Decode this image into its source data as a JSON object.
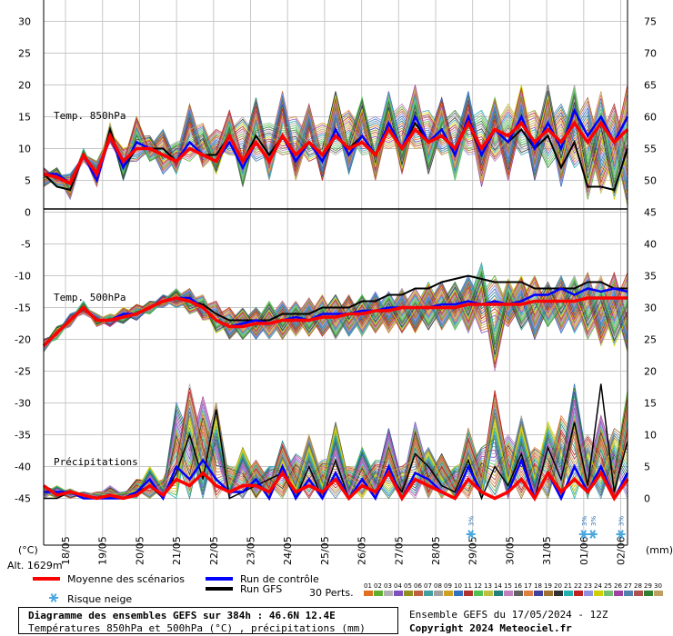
{
  "colors": {
    "mean": "#ff0000",
    "control": "#0000ff",
    "gfs": "#000000",
    "snow": "#4aa8e0",
    "grid": "#c8c8c8"
  },
  "members_colors": [
    "#e07020",
    "#60b030",
    "#b0b0b0",
    "#8050c0",
    "#909020",
    "#c06040",
    "#40a0a0",
    "#a0a0a0",
    "#d0a020",
    "#3070c0",
    "#b03030",
    "#50c050",
    "#c0c040",
    "#208080",
    "#c080c0",
    "#606060",
    "#e08040",
    "#4040a0",
    "#a07030",
    "#303030",
    "#20b0b0",
    "#c02020",
    "#9090e0",
    "#d0d000",
    "#70c070",
    "#a040a0",
    "#5080b0",
    "#b05050",
    "#308030",
    "#c0a060"
  ],
  "chart_data": {
    "type": "line",
    "x_dates": [
      "18/05",
      "19/05",
      "20/05",
      "21/05",
      "22/05",
      "23/05",
      "24/05",
      "25/05",
      "26/05",
      "27/05",
      "28/05",
      "29/05",
      "30/05",
      "31/05",
      "01/06",
      "02/06"
    ],
    "left_axis": {
      "unit_label": "(°C)",
      "ticks": [
        "30",
        "25",
        "20",
        "15",
        "10",
        "5",
        "0",
        "-5",
        "-10",
        "-15",
        "-20",
        "-25",
        "-30",
        "-35",
        "-40",
        "-45"
      ]
    },
    "right_axis": {
      "unit_label": "(mm)",
      "ticks": [
        "75",
        "70",
        "65",
        "60",
        "55",
        "50",
        "45",
        "40",
        "35",
        "30",
        "25",
        "20",
        "15",
        "10",
        "5",
        "0"
      ]
    },
    "panels": {
      "t850": {
        "label": "Temp. 850hPa",
        "mean": [
          6,
          5.5,
          4.5,
          9,
          6,
          12,
          8,
          10,
          10,
          9,
          8,
          10,
          9,
          8,
          12,
          8,
          11,
          8,
          12,
          9,
          11,
          9,
          12,
          10,
          11,
          9,
          13,
          10,
          13,
          11,
          12,
          10,
          14,
          10,
          13,
          12,
          14,
          11,
          13,
          11,
          14,
          11,
          14,
          11,
          13
        ],
        "control": [
          6,
          6,
          4.5,
          9,
          5,
          12,
          7,
          11,
          10,
          9,
          8,
          11,
          9,
          8,
          11,
          7,
          11,
          8,
          12,
          8,
          11,
          8,
          13,
          9,
          12,
          9,
          14,
          10,
          15,
          11,
          13,
          9,
          15,
          9,
          13,
          11,
          15,
          10,
          14,
          10,
          16,
          12,
          15,
          11,
          15
        ],
        "gfs": [
          6,
          4,
          3.5,
          9,
          5,
          13,
          7,
          10,
          10,
          10,
          8,
          11,
          9,
          9,
          12,
          8,
          12,
          9,
          12,
          8,
          11,
          8,
          12,
          10,
          12,
          9,
          13,
          10,
          14,
          11,
          12,
          10,
          14,
          9,
          13,
          11,
          13,
          10,
          12,
          7,
          11,
          4,
          4,
          3.5,
          10
        ],
        "spread_max": [
          7,
          7,
          6,
          10,
          8,
          14,
          10,
          15,
          12,
          13,
          11,
          17,
          14,
          13,
          16,
          15,
          18,
          14,
          19,
          15,
          17,
          14,
          19,
          16,
          18,
          15,
          19,
          17,
          20,
          16,
          18,
          16,
          19,
          16,
          18,
          17,
          20,
          16,
          20,
          17,
          20,
          18,
          19,
          17,
          20
        ],
        "spread_min": [
          4,
          4,
          2,
          8,
          4,
          11,
          5,
          8,
          8,
          6,
          6,
          8,
          7,
          6,
          9,
          4,
          8,
          5,
          9,
          5,
          8,
          5,
          9,
          6,
          9,
          5,
          10,
          6,
          10,
          6,
          9,
          5,
          9,
          4,
          8,
          5,
          9,
          5,
          7,
          4,
          7,
          2,
          3,
          2,
          1
        ]
      },
      "t500": {
        "label": "Temp. 500hPa",
        "mean": [
          -21,
          -19,
          -17,
          -15,
          -17,
          -17,
          -16.5,
          -16,
          -15,
          -14,
          -13.5,
          -14,
          -15,
          -17,
          -18,
          -18,
          -17.5,
          -17.5,
          -17,
          -17,
          -17,
          -16.5,
          -16.5,
          -16,
          -16,
          -15.5,
          -15.5,
          -15,
          -15,
          -15,
          -15,
          -15,
          -14.5,
          -14.5,
          -14.5,
          -14.5,
          -14.5,
          -14,
          -14,
          -14,
          -14,
          -13.5,
          -13.5,
          -13.5,
          -13.5
        ],
        "control": [
          -21,
          -19,
          -17,
          -15,
          -17,
          -17,
          -16,
          -16,
          -15,
          -14,
          -13.5,
          -13.5,
          -15,
          -17,
          -18,
          -17.5,
          -17,
          -17.5,
          -17,
          -16.5,
          -17,
          -16,
          -16,
          -16,
          -15.5,
          -15.5,
          -15,
          -15,
          -15,
          -15,
          -14.5,
          -14.5,
          -14,
          -14.5,
          -14,
          -14.5,
          -14,
          -13,
          -13,
          -12,
          -13,
          -12,
          -12.5,
          -12,
          -12.5
        ],
        "gfs": [
          -21,
          -19,
          -17,
          -15,
          -17,
          -17,
          -16,
          -16,
          -15,
          -14,
          -13.5,
          -14,
          -14.5,
          -16,
          -17,
          -17,
          -17,
          -17,
          -16,
          -16,
          -16,
          -15,
          -15,
          -15,
          -14,
          -14,
          -13,
          -13,
          -12,
          -12,
          -11,
          -10.5,
          -10,
          -10.5,
          -11,
          -11,
          -11,
          -12,
          -12,
          -12,
          -12,
          -11,
          -11,
          -12,
          -12
        ],
        "spread_max": [
          -20,
          -18,
          -16,
          -14,
          -16,
          -16,
          -15,
          -14.5,
          -14,
          -13,
          -12,
          -12,
          -13,
          -14,
          -15,
          -15,
          -15,
          -14,
          -14,
          -14,
          -13.5,
          -13,
          -13,
          -13,
          -13,
          -12.5,
          -12.5,
          -12,
          -12,
          -11,
          -11,
          -11,
          -10,
          -8,
          -10,
          -10.5,
          -10,
          -10,
          -11,
          -10,
          -10,
          -9.5,
          -10,
          -9.5,
          -9.5
        ],
        "spread_min": [
          -22,
          -20,
          -18,
          -16,
          -18,
          -18,
          -17.5,
          -17,
          -16,
          -15,
          -15,
          -16,
          -17,
          -19,
          -20,
          -20,
          -20,
          -20,
          -20,
          -19.5,
          -19.5,
          -19.5,
          -20,
          -19.5,
          -19.5,
          -19,
          -19,
          -19,
          -19,
          -18.5,
          -18.5,
          -18.5,
          -19,
          -19,
          -25,
          -18,
          -18.5,
          -20,
          -18,
          -19,
          -19,
          -20,
          -21,
          -21,
          -22
        ]
      },
      "precip": {
        "label": "Précipitations",
        "mean": [
          2,
          0.5,
          1,
          0.5,
          0,
          0.5,
          0,
          0.5,
          2,
          0.5,
          3,
          2,
          4,
          2,
          1,
          2,
          2,
          1,
          4,
          1,
          2,
          1,
          3,
          0,
          2,
          1,
          4,
          0,
          3,
          2,
          1,
          0,
          3,
          1,
          0,
          1,
          3,
          0,
          4,
          1,
          3,
          1,
          4,
          0,
          3
        ],
        "control": [
          1,
          1,
          1,
          0,
          0,
          0,
          0,
          1,
          3,
          0,
          5,
          3,
          6,
          3,
          1,
          1,
          3,
          0,
          5,
          0,
          3,
          0,
          4,
          0,
          3,
          0,
          5,
          0,
          4,
          3,
          1,
          0,
          5,
          1,
          0,
          1,
          6,
          0,
          4,
          0,
          5,
          1,
          5,
          0,
          4
        ],
        "gfs": [
          0,
          0,
          1,
          0,
          0,
          0,
          0,
          1,
          2,
          0,
          4,
          10,
          3,
          14,
          0,
          1,
          2,
          3,
          4,
          0,
          5,
          0,
          6,
          0,
          3,
          0,
          4,
          1,
          7,
          5,
          2,
          1,
          6,
          0,
          5,
          2,
          7,
          0,
          8,
          3,
          12,
          2,
          18,
          1,
          9
        ],
        "max": [
          2,
          2,
          1.5,
          1,
          1,
          2,
          1,
          3,
          5,
          3,
          15,
          18,
          16,
          15,
          5,
          8,
          6,
          5,
          9,
          7,
          10,
          6,
          12,
          5,
          8,
          6,
          11,
          5,
          12,
          8,
          7,
          5,
          11,
          8,
          17,
          10,
          13,
          8,
          12,
          13,
          18,
          10,
          13,
          11,
          17
        ]
      }
    },
    "snow_risk_dates": [
      "29/05",
      "01/06",
      "01/06",
      "02/06"
    ],
    "snow_risk_label": "3%"
  },
  "altitude": "Alt. 1629m",
  "legend": {
    "mean": "Moyenne des scénarios",
    "control": "Run de contrôle",
    "gfs": "Run GFS",
    "snow": "Risque neige",
    "perts": "30 Perts."
  },
  "member_numbers": [
    "01",
    "02",
    "03",
    "04",
    "05",
    "06",
    "07",
    "08",
    "09",
    "10",
    "11",
    "12",
    "13",
    "14",
    "15",
    "16",
    "17",
    "18",
    "19",
    "20",
    "21",
    "22",
    "23",
    "24",
    "25",
    "26",
    "27",
    "28",
    "29",
    "30"
  ],
  "title": {
    "main": "Diagramme des ensembles GEFS sur 384h : 46.6N 12.4E",
    "sub": "Températures 850hPa et 500hPa (°C) , précipitations (mm)"
  },
  "footer": {
    "run": "Ensemble GEFS du 17/05/2024 - 12Z",
    "copyright": "Copyright 2024 Meteociel.fr"
  }
}
